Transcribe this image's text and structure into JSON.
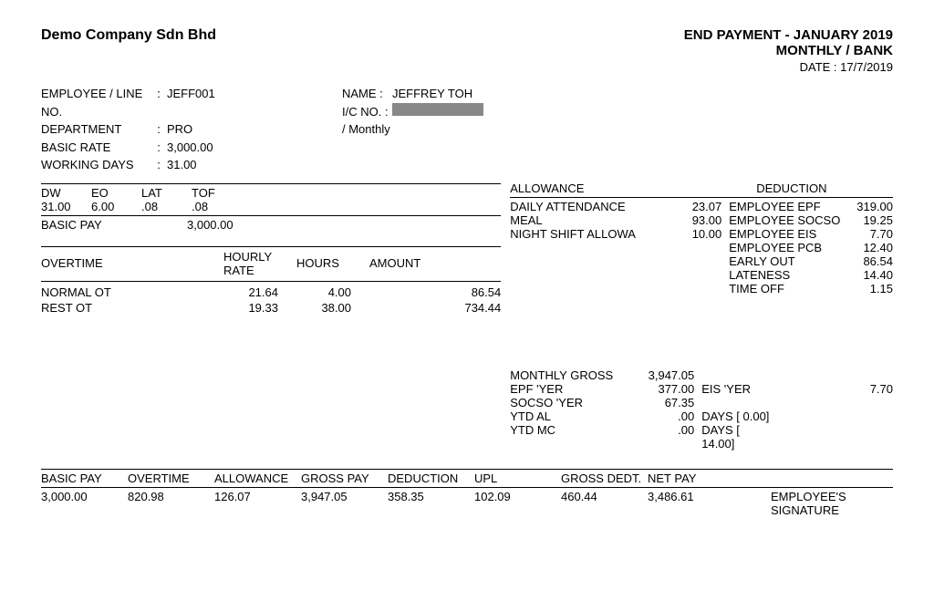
{
  "company": "Demo Company Sdn Bhd",
  "header": {
    "title": "END PAYMENT   -   JANUARY 2019",
    "line2": "MONTHLY /    BANK",
    "date_label": "DATE :",
    "date": "17/7/2019"
  },
  "employee": {
    "line_no_label": "EMPLOYEE / LINE NO.",
    "line_no": "JEFF001",
    "dept_label": "DEPARTMENT",
    "dept": "PRO",
    "basic_rate_label": "BASIC RATE",
    "basic_rate": "3,000.00",
    "basic_rate_per": "/  Monthly",
    "working_days_label": "WORKING DAYS",
    "working_days": "31.00",
    "name_label": "NAME :",
    "name": "JEFFREY TOH",
    "ic_label": "I/C NO. :"
  },
  "attendance": {
    "dw_h": "DW",
    "eo_h": "EO",
    "lat_h": "LAT",
    "tof_h": "TOF",
    "dw": "31.00",
    "eo": "6.00",
    "lat": ".08",
    "tof": ".08"
  },
  "basic_pay": {
    "label": "BASIC PAY",
    "value": "3,000.00"
  },
  "overtime": {
    "title": "OVERTIME",
    "h_rate": "HOURLY RATE",
    "h_hours": "HOURS",
    "h_amount": "AMOUNT",
    "rows": [
      {
        "label": "NORMAL OT",
        "rate": "21.64",
        "hours": "4.00",
        "amount": "86.54"
      },
      {
        "label": "REST OT",
        "rate": "19.33",
        "hours": "38.00",
        "amount": "734.44"
      }
    ]
  },
  "allowance": {
    "title": "ALLOWANCE",
    "rows": [
      {
        "label": "DAILY ATTENDANCE",
        "value": "23.07"
      },
      {
        "label": "MEAL",
        "value": "93.00"
      },
      {
        "label": "NIGHT SHIFT ALLOWA",
        "value": "10.00"
      }
    ]
  },
  "deduction": {
    "title": "DEDUCTION",
    "rows": [
      {
        "label": "EMPLOYEE EPF",
        "value": "319.00"
      },
      {
        "label": "EMPLOYEE SOCSO",
        "value": "19.25"
      },
      {
        "label": "EMPLOYEE EIS",
        "value": "7.70"
      },
      {
        "label": "EMPLOYEE PCB",
        "value": "12.40"
      },
      {
        "label": "EARLY OUT",
        "value": "86.54"
      },
      {
        "label": "LATENESS",
        "value": "14.40"
      },
      {
        "label": "TIME OFF",
        "value": "1.15"
      }
    ]
  },
  "summary": {
    "rows": [
      {
        "label": "MONTHLY GROSS",
        "value": "3,947.05",
        "label2": "",
        "value2": ""
      },
      {
        "label": "EPF 'YER",
        "value": "377.00",
        "label2": "EIS 'YER",
        "value2": "7.70"
      },
      {
        "label": "SOCSO 'YER",
        "value": "67.35",
        "label2": "",
        "value2": ""
      },
      {
        "label": "YTD AL",
        "value": ".00",
        "label2": "DAYS   [    0.00]",
        "value2": ""
      },
      {
        "label": "YTD MC",
        "value": ".00",
        "label2": "DAYS   [  14.00]",
        "value2": ""
      }
    ]
  },
  "footer": {
    "headers": [
      "BASIC PAY",
      "OVERTIME",
      "ALLOWANCE",
      "GROSS PAY",
      "DEDUCTION",
      "UPL",
      "GROSS DEDT.",
      "NET PAY",
      ""
    ],
    "values": [
      "3,000.00",
      "820.98",
      "126.07",
      "3,947.05",
      "358.35",
      "102.09",
      "460.44",
      "3,486.61",
      "EMPLOYEE'S SIGNATURE"
    ]
  }
}
